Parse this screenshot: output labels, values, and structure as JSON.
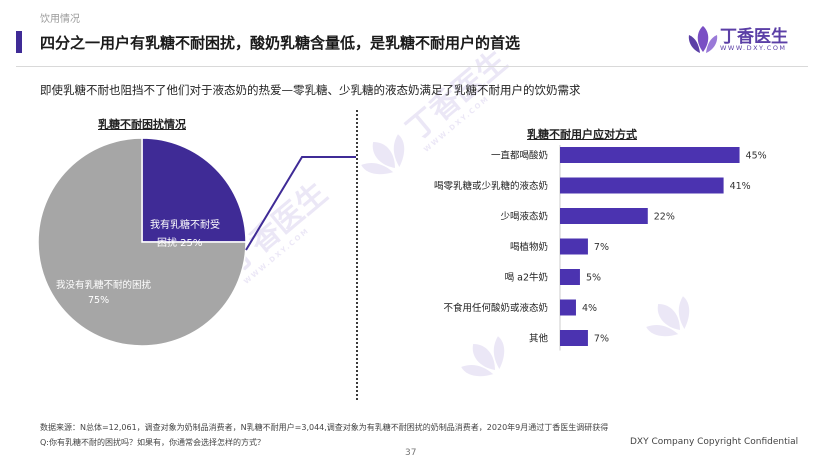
{
  "header": {
    "section_label": "饮用情况",
    "title": "四分之一用户有乳糖不耐困扰，酸奶乳糖含量低，是乳糖不耐用户的首选"
  },
  "logo": {
    "name": "丁香医生",
    "url": "WWW.DXY.COM"
  },
  "subtitle": "即使乳糖不耐也阻挡不了他们对于液态奶的热爱—零乳糖、少乳糖的液态奶满足了乳糖不耐用户的饮奶需求",
  "footer": {
    "source_line": "数据来源：N总体=12,061，调查对象为奶制品消费者，N乳糖不耐用户=3,044,调查对象为有乳糖不耐困扰的奶制品消费者，2020年9月通过丁香医生调研获得",
    "question_line": "Q:你有乳糖不耐的困扰吗？如果有，你通常会选择怎样的方式？",
    "copyright": "DXY Company Copyright Confidential",
    "page_number": "37"
  },
  "colors": {
    "accent": "#3f2b96",
    "bar": "#4b33b0",
    "pie_other": "#a6a6a6"
  },
  "chart_data": [
    {
      "type": "pie",
      "title": "乳糖不耐困扰情况",
      "slices": [
        {
          "label_line1": "我有乳糖不耐受",
          "label_line2": "困扰",
          "display": "25%",
          "value": 25,
          "color": "#3f2b96"
        },
        {
          "label_line1": "我没有乳糖不耐的困扰",
          "label_line2": "",
          "display": "75%",
          "value": 75,
          "color": "#a6a6a6"
        }
      ]
    },
    {
      "type": "bar",
      "orientation": "horizontal",
      "title": "乳糖不耐用户应对方式",
      "categories": [
        "一直都喝酸奶",
        "喝零乳糖或少乳糖的液态奶",
        "少喝液态奶",
        "喝植物奶",
        "喝 a2牛奶",
        "不食用任何酸奶或液态奶",
        "其他"
      ],
      "values": [
        45,
        41,
        22,
        7,
        5,
        4,
        7
      ],
      "labels": [
        "45%",
        "41%",
        "22%",
        "7%",
        "5%",
        "4%",
        "7%"
      ],
      "xlim": [
        0,
        50
      ]
    }
  ]
}
